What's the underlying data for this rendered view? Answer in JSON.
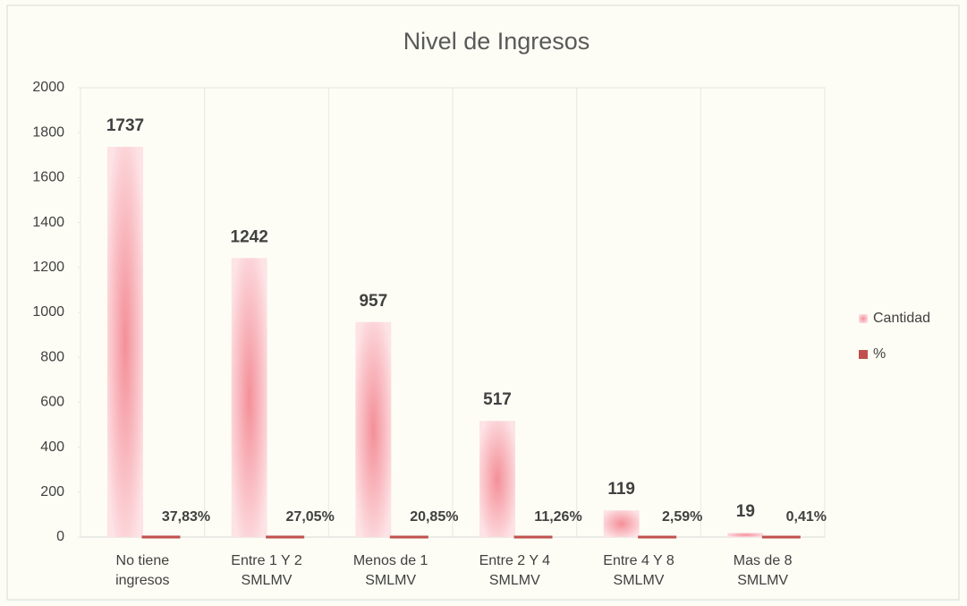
{
  "chart_data": {
    "type": "bar",
    "title": "Nivel de Ingresos",
    "categories": [
      "No tiene ingresos",
      "Entre 1 Y 2 SMLMV",
      "Menos de 1 SMLMV",
      "Entre 2 Y 4 SMLMV",
      "Entre 4 Y 8 SMLMV",
      "Mas de 8 SMLMV"
    ],
    "series": [
      {
        "name": "Cantidad",
        "color": "#f4a0a8",
        "values": [
          1737,
          1242,
          957,
          517,
          119,
          19
        ]
      },
      {
        "name": "%",
        "color": "#c0504d",
        "values": [
          0.3783,
          0.2705,
          0.2085,
          0.1126,
          0.0259,
          0.0041
        ],
        "value_labels": [
          "37,83%",
          "27,05%",
          "20,85%",
          "11,26%",
          "2,59%",
          "0,41%"
        ]
      }
    ],
    "ylim": [
      0,
      2000
    ],
    "yticks": [
      0,
      200,
      400,
      600,
      800,
      1000,
      1200,
      1400,
      1600,
      1800,
      2000
    ],
    "grid": "vertical",
    "legend": "right"
  }
}
